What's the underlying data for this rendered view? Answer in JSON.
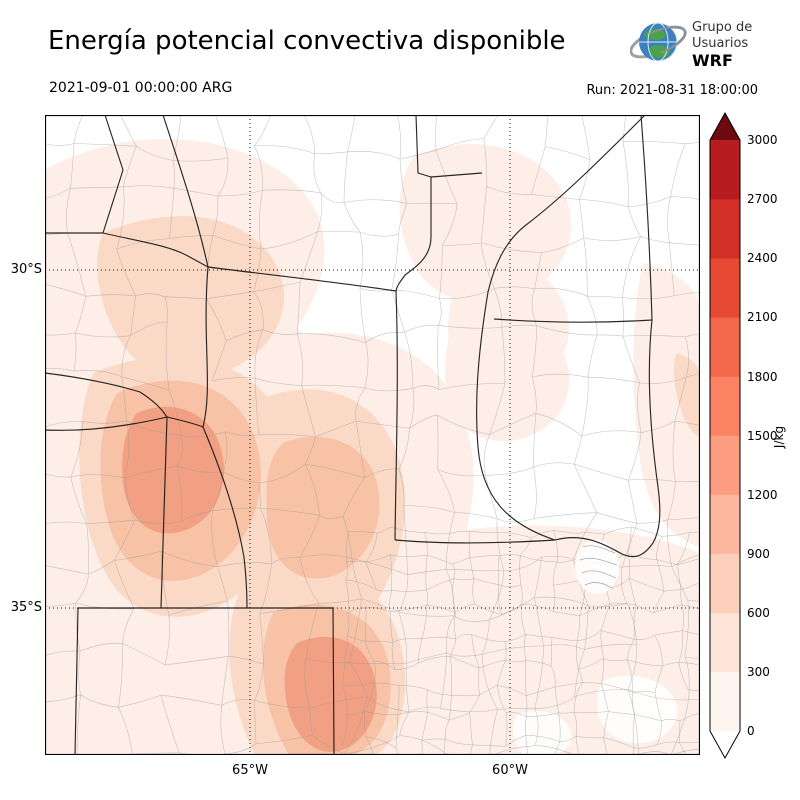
{
  "header": {
    "title": "Energía potencial convectiva disponible",
    "valid_time": "2021-09-01 00:00:00 ARG",
    "run_label": "Run: 2021-08-31 18:00:00",
    "logo": {
      "line1": "Grupo de",
      "line2": "Usuarios",
      "line3": "WRF"
    }
  },
  "axes": {
    "lat": [
      {
        "label": "30°S"
      },
      {
        "label": "35°S"
      }
    ],
    "lon": [
      {
        "label": "65°W"
      },
      {
        "label": "60°W"
      }
    ]
  },
  "colorbar": {
    "unit": "J/kg",
    "ticks": [
      "3000",
      "2700",
      "2400",
      "2100",
      "1800",
      "1500",
      "1200",
      "900",
      "600",
      "300",
      "0"
    ],
    "levels_bottom_to_top": [
      0,
      300,
      600,
      900,
      1200,
      1500,
      1800,
      2100,
      2400,
      2700,
      3000
    ],
    "colors": [
      "#fff5f0",
      "#fee5d8",
      "#fdd0bc",
      "#fcb79e",
      "#fc9c81",
      "#fb8263",
      "#f4684a",
      "#e64a35",
      "#d32f27",
      "#b71d1e"
    ],
    "arrow_top": "#6d0a10",
    "arrow_bottom": "#ffffff"
  }
}
